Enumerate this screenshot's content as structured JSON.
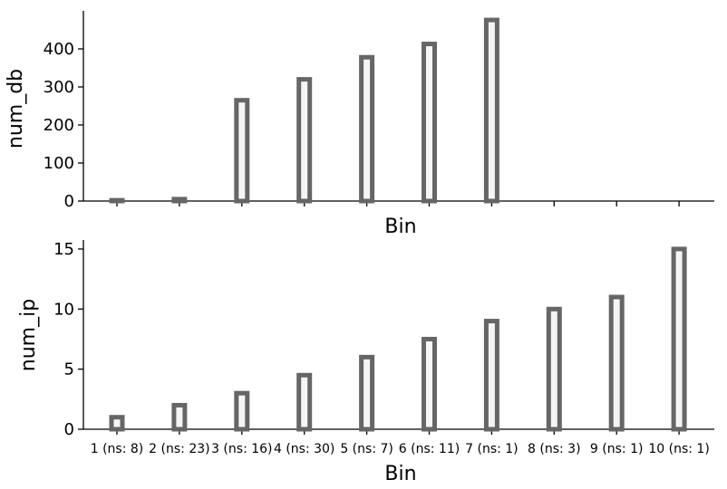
{
  "chart_data": [
    {
      "type": "bar",
      "categories": [
        "1 (ns: 8)",
        "2 (ns: 23)",
        "3 (ns: 16)",
        "4 (ns: 30)",
        "5 (ns: 7)",
        "6 (ns: 11)",
        "7 (ns: 1)",
        "8 (ns: 3)",
        "9 (ns: 1)",
        "10 (ns: 1)"
      ],
      "values": [
        2,
        5,
        265,
        320,
        378,
        413,
        476,
        0,
        0,
        0
      ],
      "xlabel": "Bin",
      "ylabel": "num_db",
      "ylim": [
        0,
        500
      ],
      "yticks": [
        0,
        100,
        200,
        300,
        400
      ],
      "show_category_labels": false,
      "grid": false,
      "bar_fill": "#f5f5f5",
      "bar_edge": "#666666"
    },
    {
      "type": "bar",
      "categories": [
        "1 (ns: 8)",
        "2 (ns: 23)",
        "3 (ns: 16)",
        "4 (ns: 30)",
        "5 (ns: 7)",
        "6 (ns: 11)",
        "7 (ns: 1)",
        "8 (ns: 3)",
        "9 (ns: 1)",
        "10 (ns: 1)"
      ],
      "values": [
        1,
        2,
        3,
        4.5,
        6,
        7.5,
        9,
        10,
        11,
        15
      ],
      "xlabel": "Bin",
      "ylabel": "num_ip",
      "ylim": [
        0,
        15.75
      ],
      "yticks": [
        0,
        5,
        10,
        15
      ],
      "show_category_labels": true,
      "grid": false,
      "bar_fill": "#f5f5f5",
      "bar_edge": "#666666"
    }
  ]
}
